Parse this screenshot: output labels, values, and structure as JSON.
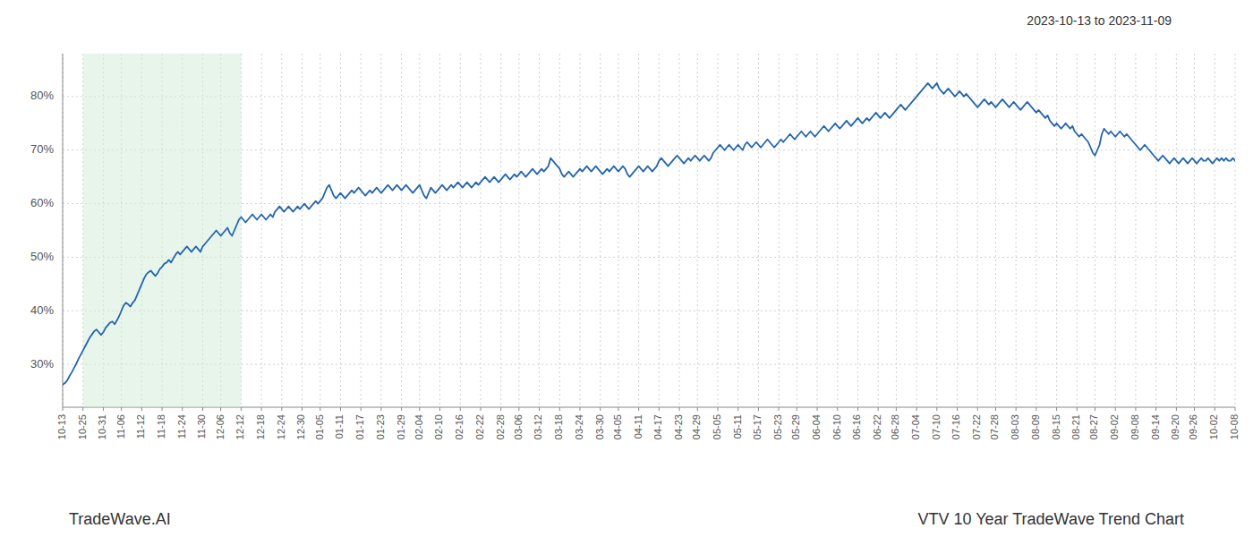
{
  "chart_data": {
    "type": "line",
    "title": "VTV 10 Year TradeWave Trend Chart",
    "subtitle": "2023-10-13 to 2023-11-09",
    "annotations": [
      "TradeWave.AI"
    ],
    "color": "#2565ae",
    "grid": true,
    "highlight": {
      "from": "10-25",
      "to": "12-12",
      "color": "#d4edda"
    },
    "ylim": [
      22,
      88
    ],
    "yticks": [
      {
        "value": 30,
        "label": "30%"
      },
      {
        "value": 40,
        "label": "40%"
      },
      {
        "value": 50,
        "label": "50%"
      },
      {
        "value": 60,
        "label": "60%"
      },
      {
        "value": 70,
        "label": "70%"
      },
      {
        "value": 80,
        "label": "80%"
      }
    ],
    "categories": [
      "10-13",
      null,
      null,
      null,
      null,
      null,
      null,
      null,
      null,
      "10-25",
      null,
      null,
      null,
      null,
      null,
      null,
      null,
      null,
      "10-31",
      null,
      null,
      null,
      null,
      null,
      null,
      null,
      "11-06",
      null,
      null,
      null,
      null,
      null,
      null,
      null,
      null,
      "11-12",
      null,
      null,
      null,
      null,
      null,
      null,
      null,
      null,
      "11-18",
      null,
      null,
      null,
      null,
      null,
      null,
      null,
      null,
      "11-24",
      null,
      null,
      null,
      null,
      null,
      null,
      null,
      null,
      "11-30",
      null,
      null,
      null,
      null,
      null,
      null,
      null,
      "12-06",
      null,
      null,
      null,
      null,
      null,
      null,
      null,
      null,
      "12-12",
      null,
      null,
      null,
      null,
      null,
      null,
      null,
      null,
      "12-18",
      null,
      null,
      null,
      null,
      null,
      null,
      null,
      null,
      "12-24",
      null,
      null,
      null,
      null,
      null,
      null,
      null,
      null,
      "12-30",
      null,
      null,
      null,
      null,
      null,
      null,
      null,
      "01-05",
      null,
      null,
      null,
      null,
      null,
      null,
      null,
      null,
      "01-11",
      null,
      null,
      null,
      null,
      null,
      null,
      null,
      null,
      "01-17",
      null,
      null,
      null,
      null,
      null,
      null,
      null,
      null,
      "01-23",
      null,
      null,
      null,
      null,
      null,
      null,
      null,
      null,
      "01-29",
      null,
      null,
      null,
      null,
      null,
      null,
      null,
      "02-04",
      null,
      null,
      null,
      null,
      null,
      null,
      null,
      null,
      "02-10",
      null,
      null,
      null,
      null,
      null,
      null,
      null,
      null,
      "02-16",
      null,
      null,
      null,
      null,
      null,
      null,
      null,
      null,
      "02-22",
      null,
      null,
      null,
      null,
      null,
      null,
      null,
      null,
      "02-28",
      null,
      null,
      null,
      null,
      null,
      null,
      null,
      "03-06",
      null,
      null,
      null,
      null,
      null,
      null,
      null,
      null,
      "03-12",
      null,
      null,
      null,
      null,
      null,
      null,
      null,
      null,
      "03-18",
      null,
      null,
      null,
      null,
      null,
      null,
      null,
      null,
      "03-24",
      null,
      null,
      null,
      null,
      null,
      null,
      null,
      null,
      "03-30",
      null,
      null,
      null,
      null,
      null,
      null,
      null,
      "04-05",
      null,
      null,
      null,
      null,
      null,
      null,
      null,
      null,
      "04-11",
      null,
      null,
      null,
      null,
      null,
      null,
      null,
      null,
      "04-17",
      null,
      null,
      null,
      null,
      null,
      null,
      null,
      null,
      "04-23",
      null,
      null,
      null,
      null,
      null,
      null,
      null,
      "04-29",
      null,
      null,
      null,
      null,
      null,
      null,
      null,
      null,
      "05-05",
      null,
      null,
      null,
      null,
      null,
      null,
      null,
      null,
      "05-11",
      null,
      null,
      null,
      null,
      null,
      null,
      null,
      null,
      "05-17",
      null,
      null,
      null,
      null,
      null,
      null,
      null,
      null,
      "05-23",
      null,
      null,
      null,
      null,
      null,
      null,
      null,
      "05-29",
      null,
      null,
      null,
      null,
      null,
      null,
      null,
      null,
      "06-04",
      null,
      null,
      null,
      null,
      null,
      null,
      null,
      null,
      "06-10",
      null,
      null,
      null,
      null,
      null,
      null,
      null,
      null,
      "06-16",
      null,
      null,
      null,
      null,
      null,
      null,
      null,
      null,
      "06-22",
      null,
      null,
      null,
      null,
      null,
      null,
      null,
      "06-28",
      null,
      null,
      null,
      null,
      null,
      null,
      null,
      null,
      "07-04",
      null,
      null,
      null,
      null,
      null,
      null,
      null,
      null,
      "07-10",
      null,
      null,
      null,
      null,
      null,
      null,
      null,
      null,
      "07-16",
      null,
      null,
      null,
      null,
      null,
      null,
      null,
      null,
      "07-22",
      null,
      null,
      null,
      null,
      null,
      null,
      null,
      "07-28",
      null,
      null,
      null,
      null,
      null,
      null,
      null,
      null,
      "08-03",
      null,
      null,
      null,
      null,
      null,
      null,
      null,
      null,
      "08-09",
      null,
      null,
      null,
      null,
      null,
      null,
      null,
      null,
      "08-15",
      null,
      null,
      null,
      null,
      null,
      null,
      null,
      null,
      "08-21",
      null,
      null,
      null,
      null,
      null,
      null,
      null,
      "08-27",
      null,
      null,
      null,
      null,
      null,
      null,
      null,
      null,
      "09-02",
      null,
      null,
      null,
      null,
      null,
      null,
      null,
      null,
      "09-08",
      null,
      null,
      null,
      null,
      null,
      null,
      null,
      null,
      "09-14",
      null,
      null,
      null,
      null,
      null,
      null,
      null,
      null,
      "09-20",
      null,
      null,
      null,
      null,
      null,
      null,
      null,
      "09-26",
      null,
      null,
      null,
      null,
      null,
      null,
      null,
      null,
      "10-02",
      null,
      null,
      null,
      null,
      null,
      null,
      null,
      null,
      "10-08"
    ],
    "values": [
      26.2,
      26.5,
      27.0,
      27.8,
      28.5,
      29.3,
      30.1,
      31.0,
      31.8,
      32.6,
      33.4,
      34.2,
      35.0,
      35.6,
      36.2,
      36.5,
      36.0,
      35.5,
      36.0,
      36.8,
      37.3,
      37.8,
      38.0,
      37.5,
      38.2,
      39.0,
      40.0,
      41.0,
      41.5,
      41.2,
      40.8,
      41.5,
      42.0,
      43.0,
      44.0,
      45.0,
      46.0,
      46.8,
      47.2,
      47.5,
      47.0,
      46.5,
      47.0,
      47.8,
      48.2,
      48.8,
      49.0,
      49.5,
      49.0,
      49.8,
      50.5,
      51.0,
      50.5,
      51.0,
      51.5,
      52.0,
      51.5,
      51.0,
      51.5,
      52.0,
      51.5,
      51.0,
      52.0,
      52.5,
      53.0,
      53.5,
      54.0,
      54.5,
      55.0,
      54.5,
      54.0,
      54.5,
      55.0,
      55.5,
      54.5,
      54.0,
      55.0,
      56.0,
      57.0,
      57.5,
      57.0,
      56.5,
      57.0,
      57.5,
      58.0,
      57.5,
      57.0,
      57.5,
      58.0,
      57.5,
      57.0,
      57.5,
      58.0,
      57.5,
      58.5,
      59.0,
      59.5,
      59.0,
      58.5,
      59.0,
      59.5,
      59.0,
      58.5,
      59.0,
      59.5,
      59.0,
      59.5,
      60.0,
      59.5,
      59.0,
      59.5,
      60.0,
      60.5,
      60.0,
      60.5,
      61.0,
      62.0,
      63.0,
      63.5,
      62.5,
      61.5,
      61.0,
      61.5,
      62.0,
      61.5,
      61.0,
      61.5,
      62.0,
      62.5,
      62.0,
      62.5,
      63.0,
      62.5,
      62.0,
      61.5,
      62.0,
      62.5,
      62.0,
      62.5,
      63.0,
      62.5,
      62.0,
      62.5,
      63.0,
      63.5,
      63.0,
      62.5,
      63.0,
      63.5,
      63.0,
      62.5,
      63.0,
      63.5,
      63.0,
      62.5,
      62.0,
      62.5,
      63.0,
      63.5,
      62.5,
      61.5,
      61.0,
      62.0,
      63.0,
      62.5,
      62.0,
      62.5,
      63.0,
      63.5,
      63.0,
      62.5,
      63.0,
      63.5,
      63.0,
      63.5,
      64.0,
      63.5,
      63.0,
      63.5,
      64.0,
      63.5,
      63.0,
      63.5,
      64.0,
      63.5,
      64.0,
      64.5,
      65.0,
      64.5,
      64.0,
      64.5,
      65.0,
      64.5,
      64.0,
      64.5,
      65.0,
      65.5,
      65.0,
      64.5,
      65.0,
      65.5,
      65.0,
      65.5,
      66.0,
      65.5,
      65.0,
      65.5,
      66.0,
      66.5,
      66.0,
      65.5,
      66.0,
      66.5,
      66.0,
      66.5,
      67.0,
      68.5,
      68.0,
      67.5,
      67.0,
      66.5,
      65.5,
      65.0,
      65.5,
      66.0,
      65.5,
      65.0,
      65.5,
      66.0,
      66.5,
      66.0,
      66.5,
      67.0,
      66.5,
      66.0,
      66.5,
      67.0,
      66.5,
      66.0,
      65.5,
      66.0,
      66.5,
      66.0,
      66.5,
      67.0,
      66.5,
      66.0,
      66.5,
      67.0,
      66.5,
      65.5,
      65.0,
      65.5,
      66.0,
      66.5,
      67.0,
      66.5,
      66.0,
      66.5,
      67.0,
      66.5,
      66.0,
      66.5,
      67.0,
      68.0,
      68.5,
      68.0,
      67.5,
      67.0,
      67.5,
      68.0,
      68.5,
      69.0,
      68.5,
      68.0,
      67.5,
      68.0,
      68.5,
      68.0,
      68.5,
      69.0,
      68.5,
      68.0,
      68.5,
      69.0,
      68.5,
      68.0,
      68.5,
      69.5,
      70.0,
      70.5,
      71.0,
      70.5,
      70.0,
      70.5,
      71.0,
      70.5,
      70.0,
      70.5,
      71.0,
      70.5,
      70.0,
      71.0,
      71.5,
      71.0,
      70.5,
      71.0,
      71.5,
      71.0,
      70.5,
      71.0,
      71.5,
      72.0,
      71.5,
      71.0,
      70.5,
      71.0,
      71.5,
      72.0,
      71.5,
      72.0,
      72.5,
      73.0,
      72.5,
      72.0,
      72.5,
      73.0,
      73.5,
      73.0,
      72.5,
      73.0,
      73.5,
      73.0,
      72.5,
      73.0,
      73.5,
      74.0,
      74.5,
      74.0,
      73.5,
      74.0,
      74.5,
      75.0,
      74.5,
      74.0,
      74.5,
      75.0,
      75.5,
      75.0,
      74.5,
      75.0,
      75.5,
      76.0,
      75.5,
      75.0,
      75.5,
      76.0,
      75.5,
      76.0,
      76.5,
      77.0,
      76.5,
      76.0,
      76.5,
      77.0,
      76.5,
      76.0,
      76.5,
      77.0,
      77.5,
      78.0,
      78.5,
      78.0,
      77.5,
      78.0,
      78.5,
      79.0,
      79.5,
      80.0,
      80.5,
      81.0,
      81.5,
      82.0,
      82.5,
      82.0,
      81.5,
      82.0,
      82.5,
      81.5,
      81.0,
      80.5,
      81.0,
      81.5,
      81.0,
      80.5,
      80.0,
      80.5,
      81.0,
      80.5,
      80.0,
      80.5,
      80.0,
      79.5,
      79.0,
      78.5,
      78.0,
      78.5,
      79.0,
      79.5,
      79.0,
      78.5,
      79.0,
      78.5,
      78.0,
      78.5,
      79.0,
      79.5,
      79.0,
      78.5,
      78.0,
      78.5,
      79.0,
      78.5,
      78.0,
      77.5,
      78.0,
      78.5,
      79.0,
      78.5,
      78.0,
      77.5,
      77.0,
      77.5,
      77.0,
      76.5,
      76.0,
      76.5,
      75.5,
      75.0,
      74.5,
      75.0,
      74.5,
      74.0,
      74.5,
      75.0,
      74.5,
      74.0,
      74.5,
      73.5,
      73.0,
      72.5,
      73.0,
      72.5,
      72.0,
      71.5,
      70.5,
      69.5,
      69.0,
      70.0,
      71.0,
      73.0,
      74.0,
      73.5,
      73.0,
      73.5,
      73.0,
      72.5,
      73.0,
      73.5,
      73.0,
      72.5,
      73.0,
      72.5,
      72.0,
      71.5,
      71.0,
      70.5,
      70.0,
      70.5,
      71.0,
      70.5,
      70.0,
      69.5,
      69.0,
      68.5,
      68.0,
      68.5,
      69.0,
      68.5,
      68.0,
      67.5,
      68.0,
      68.5,
      68.0,
      67.5,
      68.0,
      68.5,
      68.0,
      67.5,
      68.0,
      68.5,
      68.0,
      67.5,
      68.0,
      68.5,
      68.0,
      68.0,
      68.5,
      68.0,
      67.5,
      68.0,
      68.5,
      68.0,
      68.5,
      68.0,
      68.5,
      68.0,
      68.0,
      68.5,
      68.0
    ]
  }
}
